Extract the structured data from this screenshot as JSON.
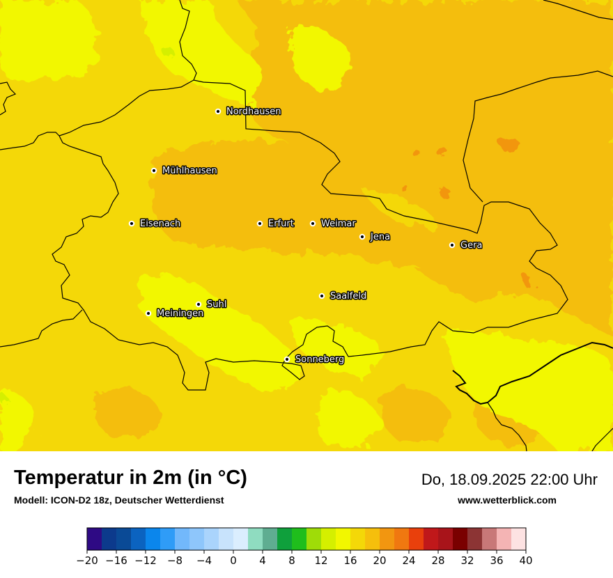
{
  "map": {
    "cities": [
      {
        "name": "Nordhausen"
      },
      {
        "name": "Mühlhausen"
      },
      {
        "name": "Eisenach"
      },
      {
        "name": "Erfurt"
      },
      {
        "name": "Weimar"
      },
      {
        "name": "Jena"
      },
      {
        "name": "Gera"
      },
      {
        "name": "Suhl"
      },
      {
        "name": "Meiningen"
      },
      {
        "name": "Saalfeld"
      },
      {
        "name": "Sonneberg"
      }
    ]
  },
  "header": {
    "title": "Temperatur in 2m (in °C)",
    "subtitle": "Modell: ICON-D2 18z, Deutscher Wetterdienst",
    "datetime": "Do, 18.09.2025 22:00 Uhr",
    "website": "www.wetterblick.com"
  },
  "legend": {
    "min": -20,
    "max": 40,
    "step": 2,
    "tick_labels": [
      "−20",
      "−16",
      "−12",
      "−8",
      "−4",
      "0",
      "4",
      "8",
      "12",
      "16",
      "20",
      "24",
      "28",
      "32",
      "36",
      "40"
    ],
    "colors": [
      "#2e0a84",
      "#0c3a8c",
      "#0a4a96",
      "#0b63c0",
      "#0b86ec",
      "#2f9cf7",
      "#72b8fb",
      "#8ec6fb",
      "#aad4fc",
      "#c8e3fc",
      "#dbeefe",
      "#8fdcc0",
      "#5fad91",
      "#0fa03c",
      "#1fbe1c",
      "#9fdc08",
      "#d5ef00",
      "#f2f700",
      "#f4d808",
      "#f6bf0c",
      "#f29610",
      "#f07810",
      "#e9400c",
      "#c0181a",
      "#a8141a",
      "#7a0000",
      "#8c3434",
      "#c87878",
      "#f4b4b4",
      "#fde2e2"
    ]
  }
}
